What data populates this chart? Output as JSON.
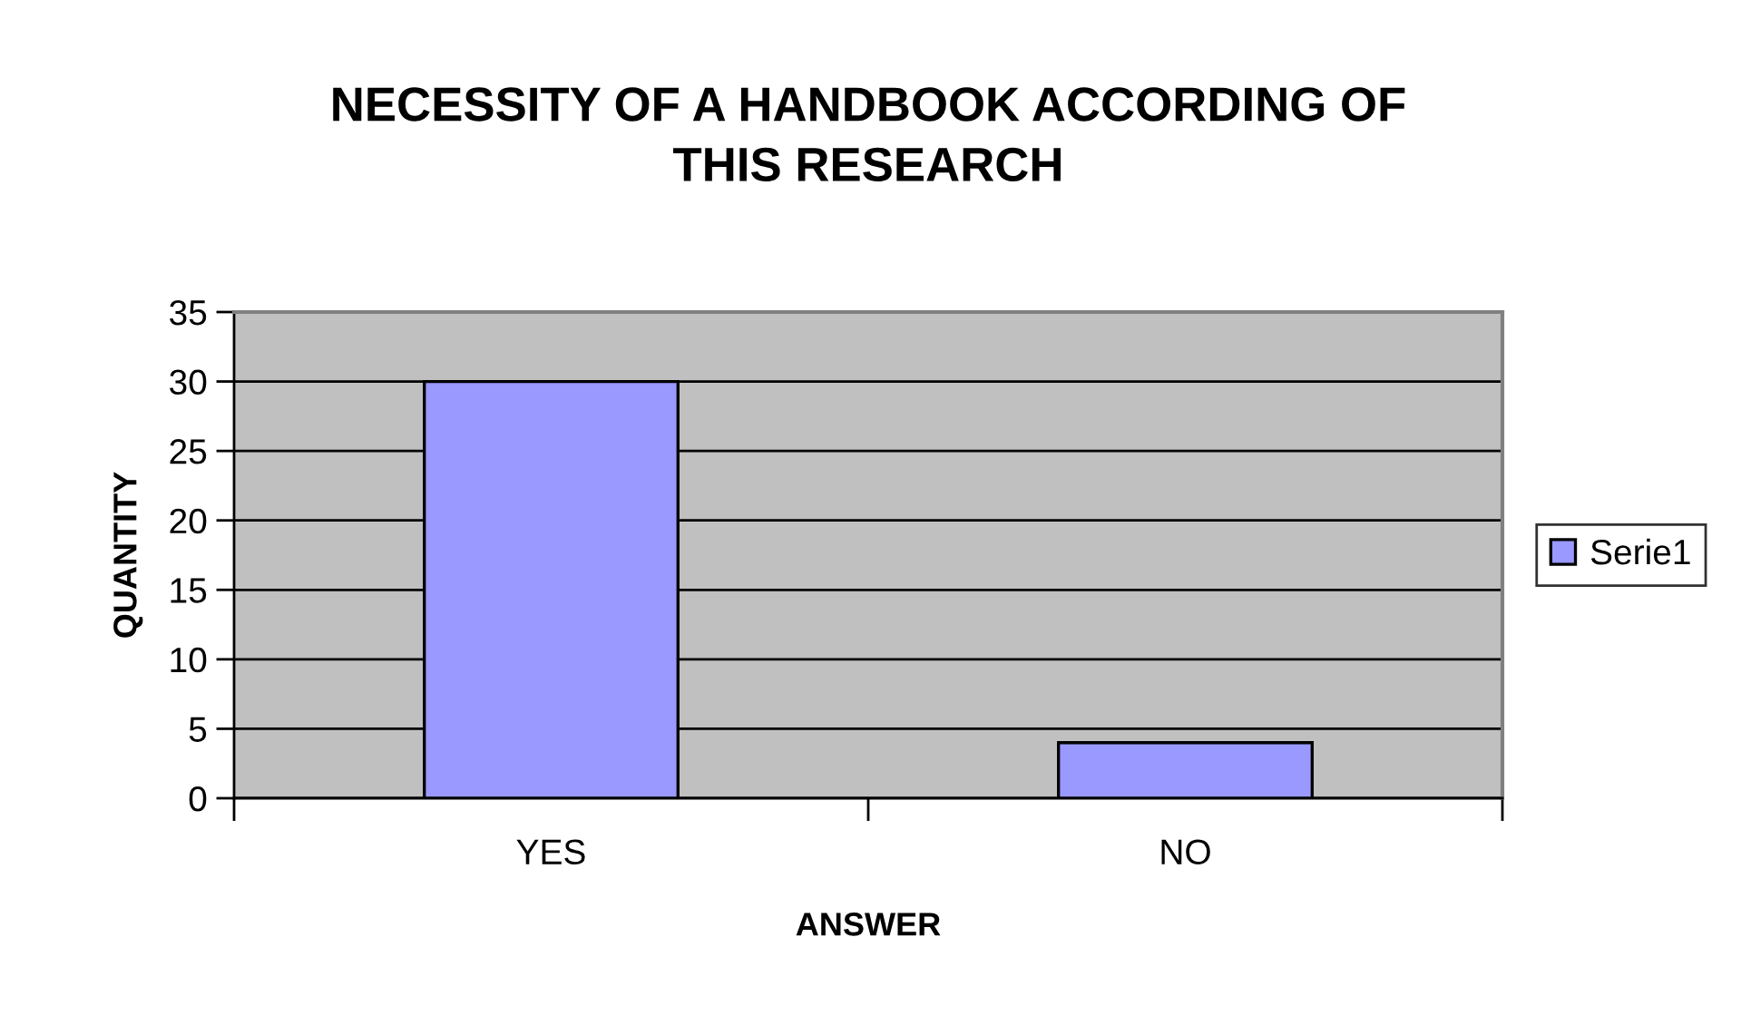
{
  "chart_data": {
    "type": "bar",
    "title": "NECESSITY OF A HANDBOOK ACCORDING OF\nTHIS RESEARCH",
    "xlabel": "ANSWER",
    "ylabel": "QUANTITY",
    "categories": [
      "YES",
      "NO"
    ],
    "series": [
      {
        "name": "Serie1",
        "color": "#9999ff",
        "values": [
          30,
          4
        ]
      }
    ],
    "ylim": [
      0,
      35
    ],
    "yticks": [
      0,
      5,
      10,
      15,
      20,
      25,
      30,
      35
    ],
    "grid": "y",
    "legend": "right"
  }
}
